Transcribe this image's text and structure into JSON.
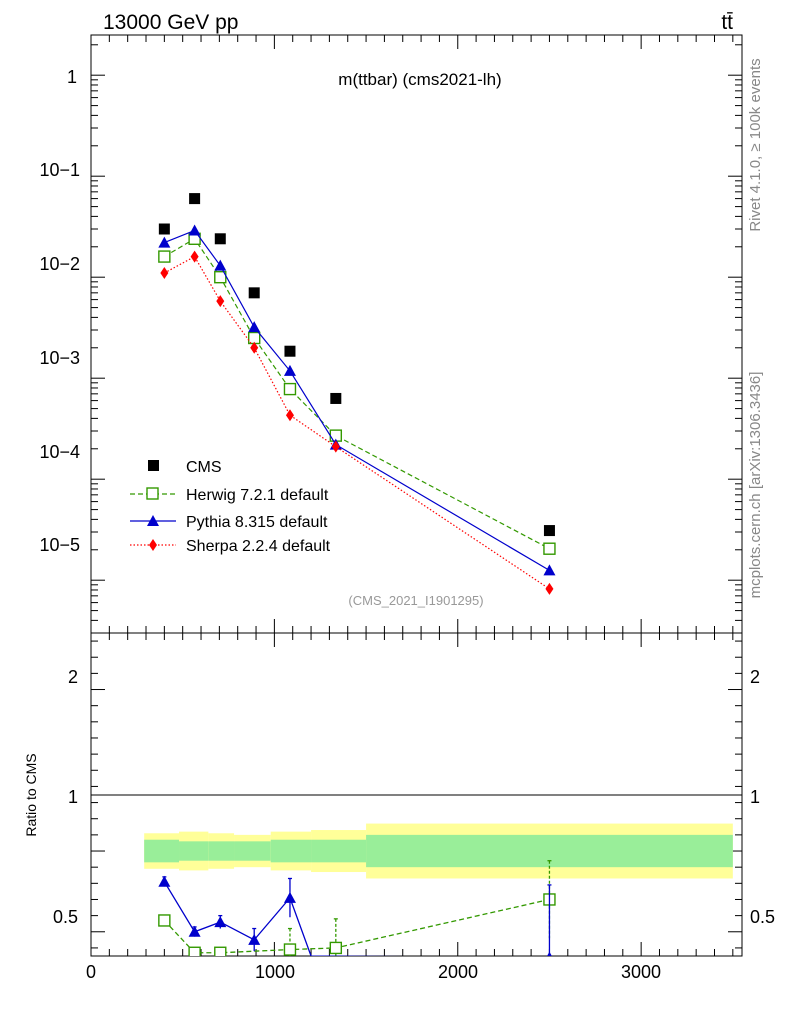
{
  "header": {
    "left": "13000 GeV pp",
    "right": "tt̄"
  },
  "side": {
    "rivet": "Rivet 4.1.0, ≥ 100k events",
    "mcplots": "mcplots.cern.ch [arXiv:1306.3436]"
  },
  "chart_data": [
    {
      "type": "scatter",
      "title": "m(ttbar) (cms2021-lh)",
      "tag": "(CMS_2021_I1901295)",
      "yscale": "log",
      "xlim": [
        0,
        3550
      ],
      "ylim": [
        3e-06,
        2.5
      ],
      "y_tick_labels": [
        "1",
        "10−1",
        "10−2",
        "10−3",
        "10−4",
        "10−5"
      ],
      "legend": [
        "CMS",
        "Herwig 7.2.1 default",
        "Pythia 8.315 default",
        "Sherpa 2.2.4 default"
      ],
      "x": [
        400,
        565,
        705,
        890,
        1085,
        1335,
        2500
      ],
      "series": [
        {
          "name": "CMS",
          "values": [
            0.03,
            0.06,
            0.024,
            0.007,
            0.00185,
            0.00063,
            3.1e-05
          ],
          "color": "#000000",
          "marker": "square",
          "line": "none"
        },
        {
          "name": "Herwig 7.2.1 default",
          "values": [
            0.016,
            0.024,
            0.01,
            0.0025,
            0.00078,
            0.00027,
            2.05e-05
          ],
          "color": "#339900",
          "marker": "open-square",
          "line": "dashed"
        },
        {
          "name": "Pythia 8.315 default",
          "values": [
            0.022,
            0.029,
            0.013,
            0.0032,
            0.00118,
            0.00022,
            1.25e-05
          ],
          "color": "#0000cc",
          "marker": "triangle",
          "line": "solid"
        },
        {
          "name": "Sherpa 2.2.4 default",
          "values": [
            0.011,
            0.016,
            0.0058,
            0.002,
            0.00043,
            0.00021,
            8.2e-06
          ],
          "color": "#ff0000",
          "marker": "diamond",
          "line": "dotted"
        }
      ]
    },
    {
      "type": "scatter",
      "ylabel": "Ratio to CMS",
      "xlabel": "",
      "xlim": [
        0,
        3550
      ],
      "ylim": [
        0.35,
        2.35
      ],
      "x_tick_labels": [
        "0",
        "1000",
        "2000",
        "3000"
      ],
      "y_tick_labels": [
        "0.5",
        "1",
        "2"
      ],
      "bands": {
        "edges": [
          290,
          480,
          640,
          780,
          980,
          1200,
          1500,
          3500
        ],
        "inner": [
          0.07,
          0.06,
          0.06,
          0.06,
          0.07,
          0.07,
          0.1
        ],
        "outer": [
          0.11,
          0.12,
          0.11,
          0.1,
          0.12,
          0.13,
          0.17
        ]
      },
      "series": [
        {
          "name": "Herwig 7.2.1 default",
          "x": [
            400,
            565,
            705,
            1085,
            1335,
            2500
          ],
          "values": [
            0.57,
            0.37,
            0.37,
            0.39,
            0.4,
            0.7
          ],
          "err": [
            0.02,
            0.02,
            0.02,
            0.13,
            0.18,
            0.24
          ]
        },
        {
          "name": "Pythia 8.315 default",
          "x": [
            400,
            565,
            705,
            890,
            1085,
            1200,
            2500
          ],
          "values": [
            0.81,
            0.5,
            0.56,
            0.45,
            0.71,
            0.35,
            0.34
          ],
          "err": [
            0.03,
            0.03,
            0.04,
            0.07,
            0.12,
            0,
            0.45
          ]
        }
      ]
    }
  ]
}
